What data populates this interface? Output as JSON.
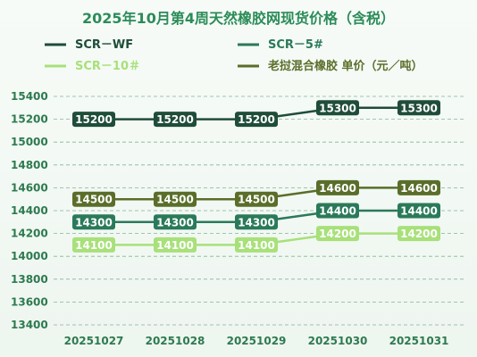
{
  "chart_data": {
    "type": "line",
    "title": "2025年10月第4周天然橡胶网现货价格（含税）",
    "x": [
      "20251027",
      "20251028",
      "20251029",
      "20251030",
      "20251031"
    ],
    "ylim": [
      13400,
      15400
    ],
    "yticks": [
      13400,
      13600,
      13800,
      14000,
      14200,
      14400,
      14600,
      14800,
      15000,
      15200,
      15400
    ],
    "grid": true,
    "legend_position": "top",
    "series": [
      {
        "name": "SCR－WF",
        "values": [
          15200,
          15200,
          15200,
          15300,
          15300
        ],
        "color": "#1f4d3a"
      },
      {
        "name": "SCR－5#",
        "values": [
          14300,
          14300,
          14300,
          14400,
          14400
        ],
        "color": "#2a7a5a"
      },
      {
        "name": "SCR－10＃",
        "values": [
          14100,
          14100,
          14100,
          14200,
          14200
        ],
        "color": "#a8e07a"
      },
      {
        "name": "老挝混合橡胶 单价（元／吨）",
        "values": [
          14500,
          14500,
          14500,
          14600,
          14600
        ],
        "color": "#5a6e2a"
      }
    ]
  }
}
